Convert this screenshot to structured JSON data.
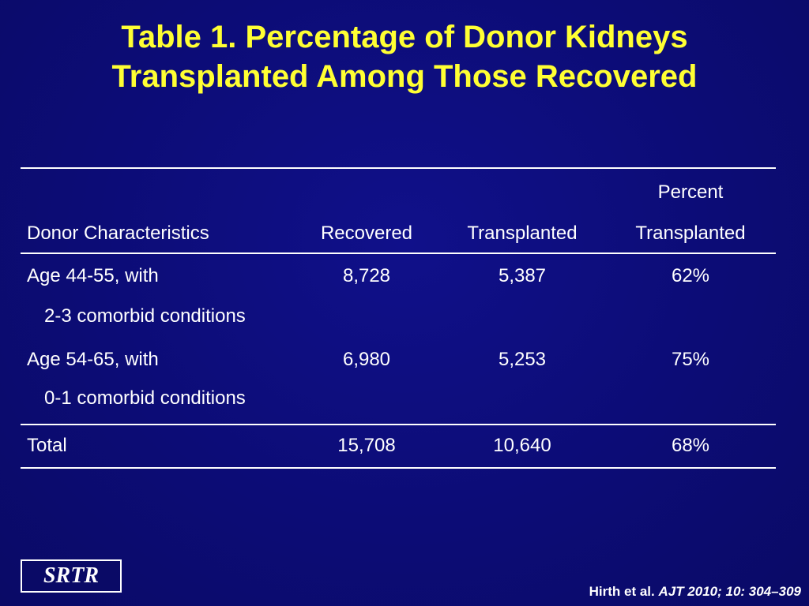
{
  "title": {
    "line1": "Table 1. Percentage of Donor Kidneys",
    "line2": "Transplanted Among Those Recovered"
  },
  "table": {
    "headers": {
      "col1": "Donor Characteristics",
      "col2": "Recovered",
      "col3": "Transplanted",
      "col4_line1": "Percent",
      "col4_line2": "Transplanted"
    },
    "rows": [
      {
        "characteristic": "Age 44-55, with",
        "sub": "2-3 comorbid conditions",
        "recovered": "8,728",
        "transplanted": "5,387",
        "percent": "62%"
      },
      {
        "characteristic": "Age 54-65, with",
        "sub": "0-1 comorbid conditions",
        "recovered": "6,980",
        "transplanted": "5,253",
        "percent": "75%"
      }
    ],
    "total": {
      "label": "Total",
      "recovered": "15,708",
      "transplanted": "10,640",
      "percent": "68%"
    }
  },
  "logo": "SRTR",
  "citation": {
    "authors": "Hirth et al. ",
    "journal": "AJT 2010; 10: 304–309"
  },
  "colors": {
    "background": "#0c0c76",
    "title": "#ffff33",
    "text": "#ffffff"
  }
}
